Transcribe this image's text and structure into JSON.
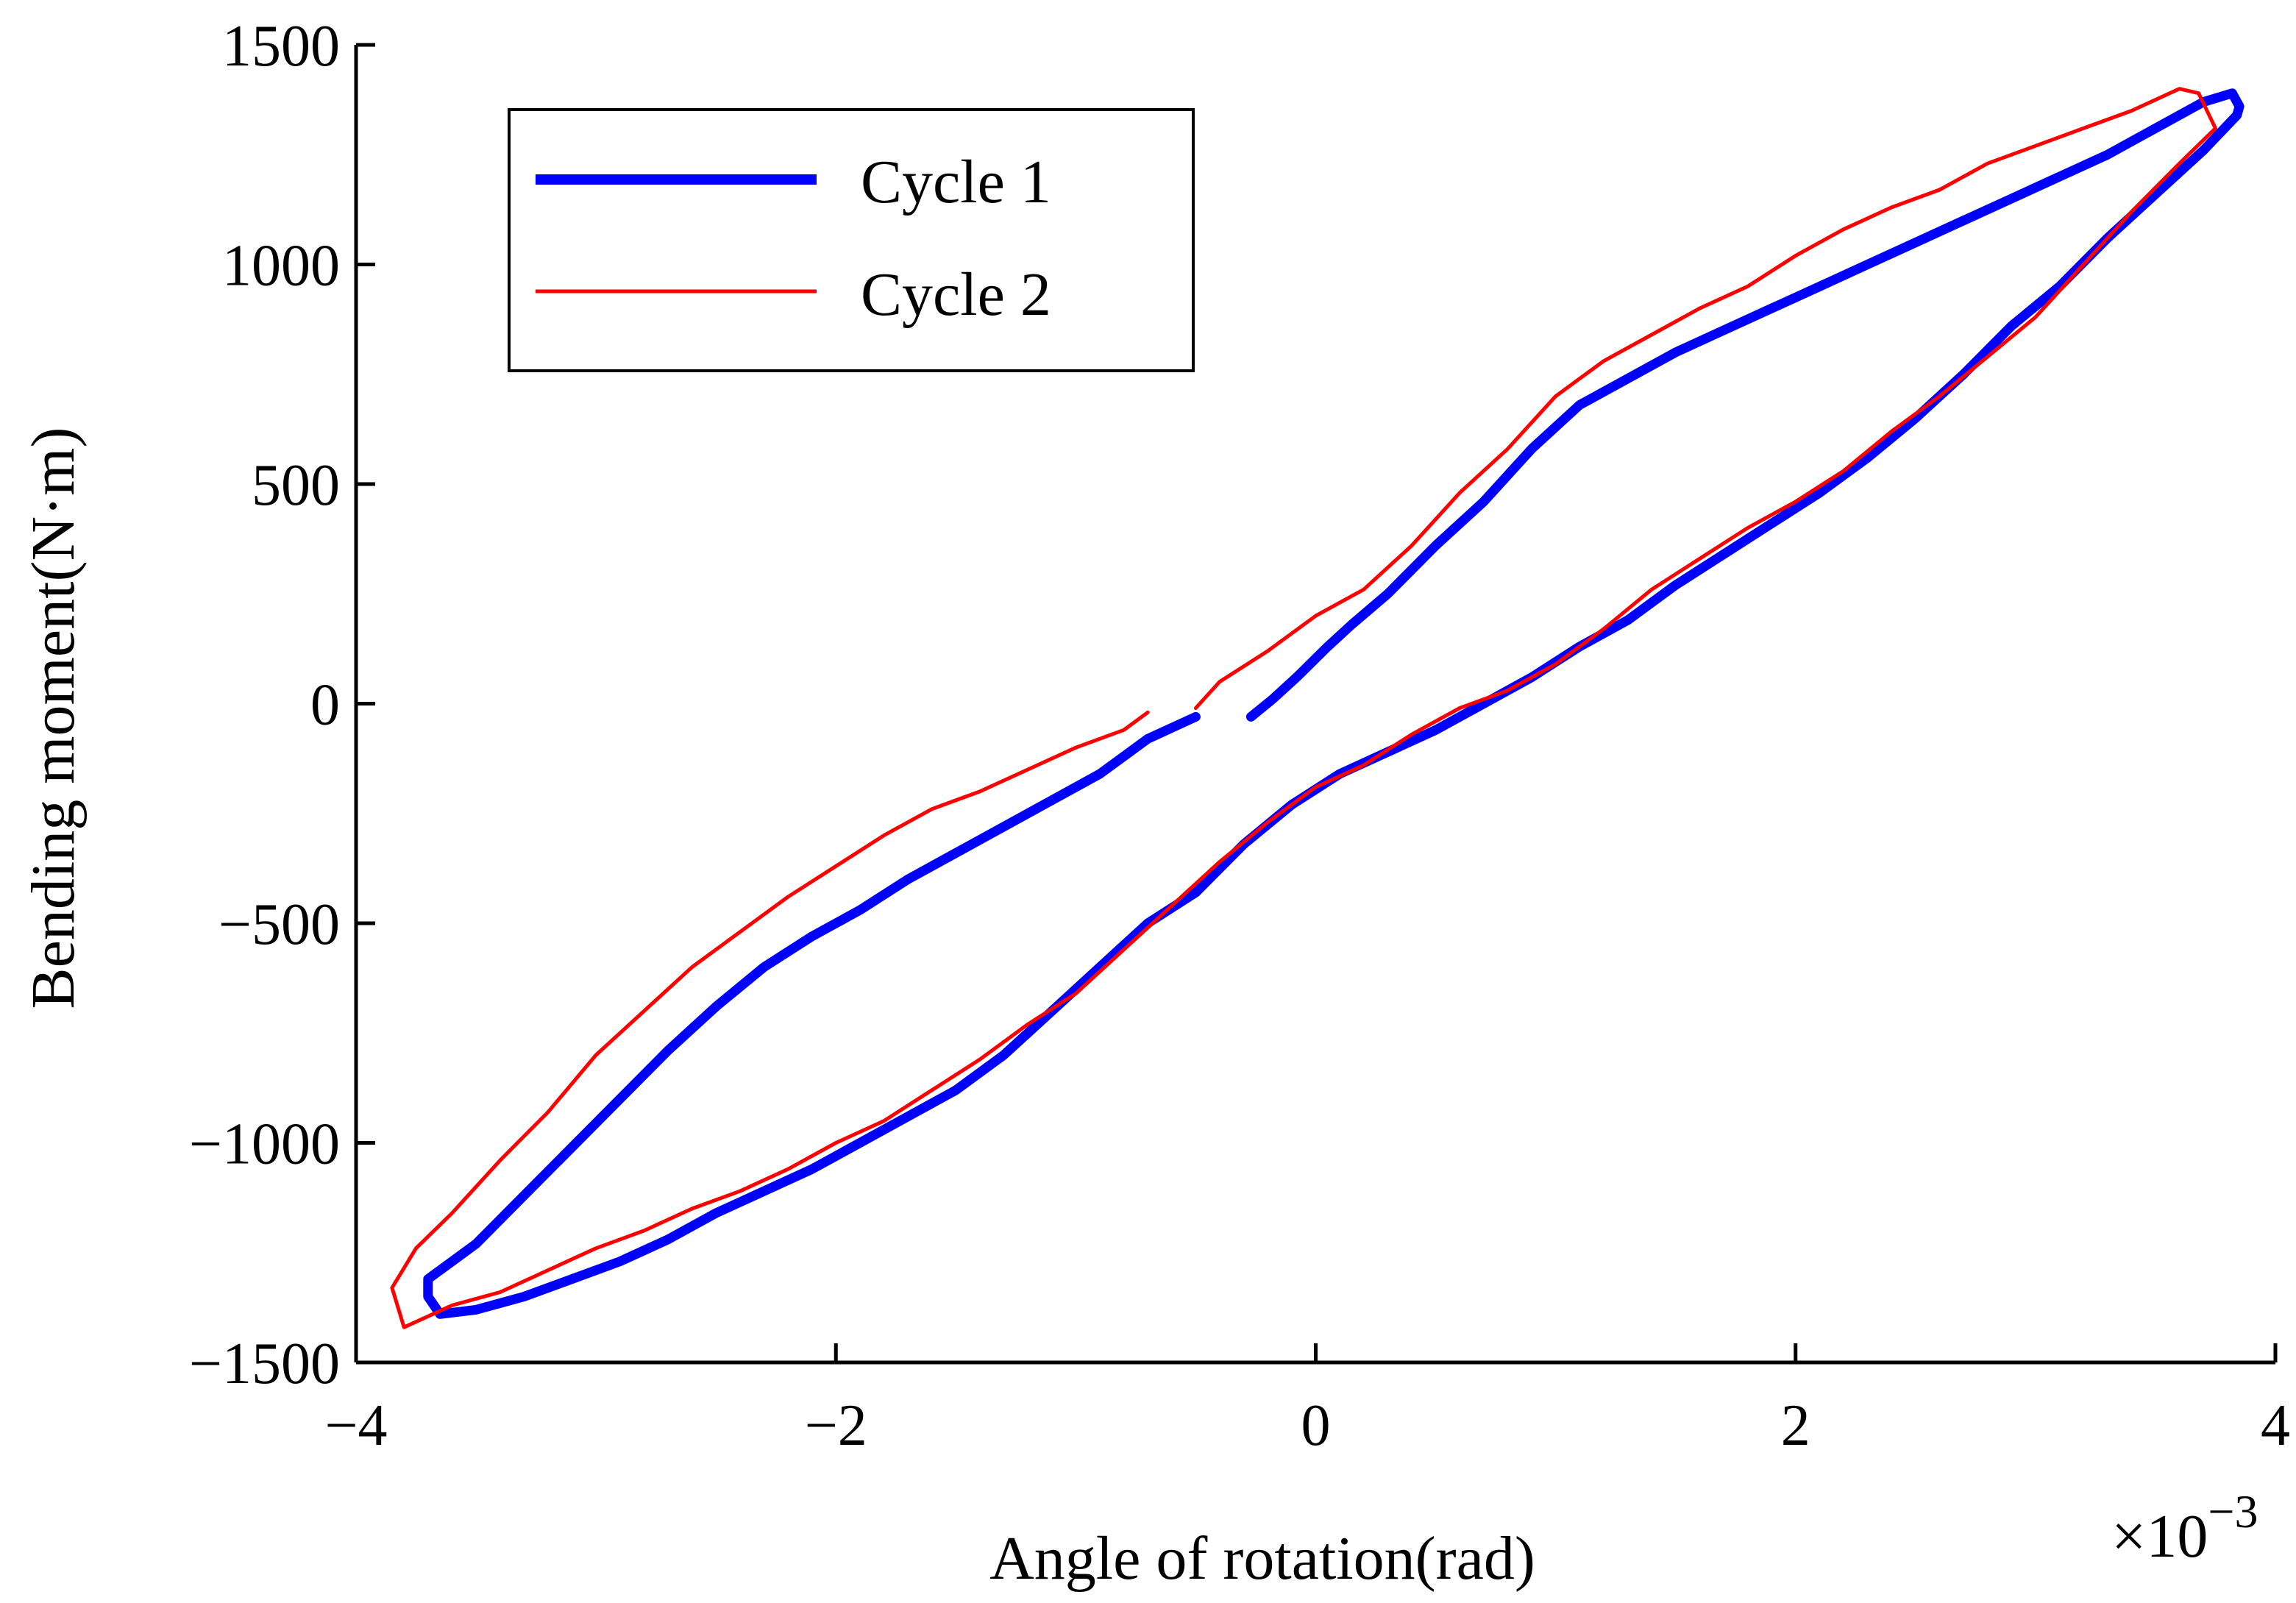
{
  "chart_data": {
    "type": "line",
    "xlabel": "Angle of rotation(rad)",
    "ylabel": "Bending moment(N·m)",
    "x_multiplier": "×10",
    "x_multiplier_exponent": "−3",
    "xlim": [
      -0.004,
      0.004
    ],
    "ylim": [
      -1500,
      1500
    ],
    "x_ticks": [
      -0.004,
      -0.002,
      0,
      0.002,
      0.004
    ],
    "x_tick_labels": [
      "−4",
      "−2",
      "0",
      "2",
      "4"
    ],
    "y_ticks": [
      -1500,
      -1000,
      -500,
      0,
      500,
      1000,
      1500
    ],
    "y_tick_labels": [
      "−1500",
      "−1000",
      "−500",
      "0",
      "500",
      "1000",
      "1500"
    ],
    "grid": false,
    "legend": {
      "position": "top-left",
      "entries": [
        "Cycle 1",
        "Cycle 2"
      ]
    },
    "series": [
      {
        "name": "Cycle 1",
        "color": "#0000ff",
        "line_style": "thick",
        "x": [
          -0.00027,
          -0.00018,
          -8e-05,
          5e-05,
          0.00015,
          0.0003,
          0.0005,
          0.0007,
          0.0009,
          0.0011,
          0.0013,
          0.0015,
          0.0017,
          0.0019,
          0.0021,
          0.0023,
          0.0025,
          0.0027,
          0.0029,
          0.0031,
          0.0033,
          0.0035,
          0.0037,
          0.00382,
          0.00385,
          0.00384,
          0.0037,
          0.0035,
          0.0033,
          0.0031,
          0.0029,
          0.0027,
          0.0025,
          0.0023,
          0.0021,
          0.0019,
          0.0017,
          0.0015,
          0.0013,
          0.0011,
          0.0009,
          0.0007,
          0.0005,
          0.0003,
          0.0001,
          -0.0001,
          -0.0003,
          -0.0005,
          -0.0007,
          -0.0009,
          -0.0011,
          -0.0013,
          -0.0015,
          -0.0017,
          -0.0019,
          -0.0021,
          -0.0023,
          -0.0025,
          -0.0027,
          -0.0029,
          -0.0031,
          -0.0033,
          -0.0035,
          -0.00365,
          -0.0037,
          -0.0037,
          -0.0035,
          -0.0033,
          -0.0031,
          -0.0029,
          -0.0027,
          -0.0025,
          -0.0023,
          -0.0021,
          -0.0019,
          -0.0017,
          -0.0015,
          -0.0013,
          -0.0011,
          -0.0009,
          -0.0007,
          -0.0005
        ],
        "y": [
          -30,
          10,
          60,
          130,
          180,
          250,
          360,
          460,
          580,
          680,
          740,
          800,
          850,
          900,
          950,
          1000,
          1050,
          1100,
          1150,
          1200,
          1250,
          1310,
          1370,
          1390,
          1360,
          1340,
          1260,
          1160,
          1060,
          950,
          860,
          750,
          650,
          560,
          480,
          410,
          340,
          270,
          190,
          130,
          60,
          0,
          -60,
          -110,
          -160,
          -230,
          -320,
          -430,
          -500,
          -600,
          -700,
          -800,
          -880,
          -940,
          -1000,
          -1060,
          -1110,
          -1160,
          -1220,
          -1270,
          -1310,
          -1350,
          -1380,
          -1390,
          -1350,
          -1310,
          -1230,
          -1120,
          -1010,
          -900,
          -790,
          -690,
          -600,
          -530,
          -470,
          -400,
          -340,
          -280,
          -220,
          -160,
          -80,
          -30
        ]
      },
      {
        "name": "Cycle 2",
        "color": "#ff0000",
        "line_style": "thin",
        "x": [
          -0.0005,
          -0.0004,
          -0.0002,
          0,
          0.0002,
          0.0004,
          0.0006,
          0.0008,
          0.001,
          0.0012,
          0.0014,
          0.0016,
          0.0018,
          0.002,
          0.0022,
          0.0024,
          0.0026,
          0.0028,
          0.003,
          0.0032,
          0.0034,
          0.0036,
          0.00368,
          0.00375,
          0.0036,
          0.0034,
          0.0032,
          0.003,
          0.0028,
          0.0026,
          0.0024,
          0.0022,
          0.002,
          0.0018,
          0.0016,
          0.0014,
          0.0012,
          0.001,
          0.0008,
          0.0006,
          0.0004,
          0.0002,
          0,
          -0.0002,
          -0.0004,
          -0.0006,
          -0.0008,
          -0.001,
          -0.0012,
          -0.0014,
          -0.0016,
          -0.0018,
          -0.002,
          -0.0022,
          -0.0024,
          -0.0026,
          -0.0028,
          -0.003,
          -0.0032,
          -0.0034,
          -0.0036,
          -0.0038,
          -0.00385,
          -0.00375,
          -0.0036,
          -0.0034,
          -0.0032,
          -0.003,
          -0.0028,
          -0.0026,
          -0.0024,
          -0.0022,
          -0.002,
          -0.0018,
          -0.0016,
          -0.0014,
          -0.0012,
          -0.001,
          -0.0008,
          -0.0007
        ],
        "y": [
          -10,
          50,
          120,
          200,
          260,
          360,
          480,
          580,
          700,
          780,
          840,
          900,
          950,
          1020,
          1080,
          1130,
          1170,
          1230,
          1270,
          1310,
          1350,
          1400,
          1390,
          1310,
          1230,
          1120,
          1000,
          880,
          790,
          700,
          620,
          530,
          460,
          400,
          330,
          260,
          170,
          90,
          30,
          -10,
          -70,
          -140,
          -190,
          -270,
          -360,
          -460,
          -560,
          -660,
          -730,
          -810,
          -880,
          -950,
          -1000,
          -1060,
          -1110,
          -1150,
          -1200,
          -1240,
          -1290,
          -1340,
          -1370,
          -1420,
          -1330,
          -1240,
          -1160,
          -1040,
          -930,
          -800,
          -700,
          -600,
          -520,
          -440,
          -370,
          -300,
          -240,
          -200,
          -150,
          -100,
          -60,
          -20
        ]
      }
    ]
  }
}
